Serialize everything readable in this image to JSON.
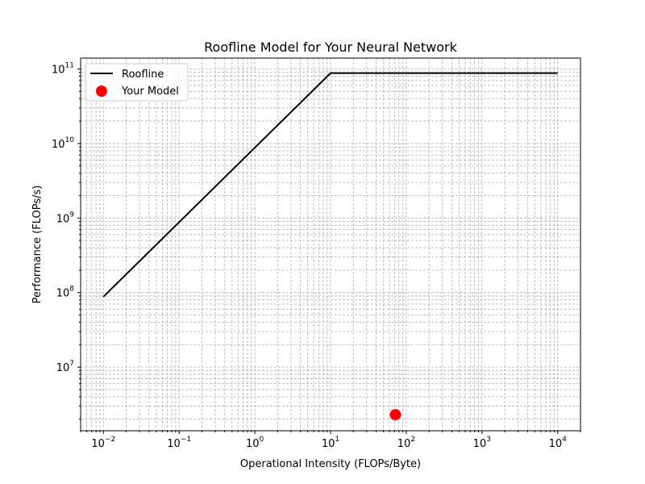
{
  "chart_data": {
    "type": "line",
    "title": "Roofline Model for Your Neural Network",
    "xlabel": "Operational Intensity (FLOPs/Byte)",
    "ylabel": "Performance (FLOPs/s)",
    "xscale": "log",
    "yscale": "log",
    "xlim": [
      0.005,
      20000
    ],
    "ylim": [
      1400000,
      140000000000
    ],
    "grid": true,
    "legend_placement": "top-left",
    "x_tick_labels": [
      {
        "value": 0.01,
        "base": "10",
        "exp": "−2"
      },
      {
        "value": 0.1,
        "base": "10",
        "exp": "−1"
      },
      {
        "value": 1,
        "base": "10",
        "exp": "0"
      },
      {
        "value": 10,
        "base": "10",
        "exp": "1"
      },
      {
        "value": 100,
        "base": "10",
        "exp": "2"
      },
      {
        "value": 1000,
        "base": "10",
        "exp": "3"
      },
      {
        "value": 10000,
        "base": "10",
        "exp": "4"
      }
    ],
    "y_tick_labels": [
      {
        "value": 10000000,
        "base": "10",
        "exp": "7"
      },
      {
        "value": 100000000,
        "base": "10",
        "exp": "8"
      },
      {
        "value": 1000000000,
        "base": "10",
        "exp": "9"
      },
      {
        "value": 10000000000,
        "base": "10",
        "exp": "10"
      },
      {
        "value": 100000000000,
        "base": "10",
        "exp": "11"
      }
    ],
    "series": [
      {
        "name": "Roofline",
        "kind": "line",
        "color": "#000000",
        "x": [
          0.01,
          10,
          10000
        ],
        "y": [
          88000000,
          88000000000,
          88000000000
        ]
      },
      {
        "name": "Your Model",
        "kind": "scatter",
        "color": "#ff0000",
        "x": [
          72
        ],
        "y": [
          2300000
        ]
      }
    ]
  }
}
